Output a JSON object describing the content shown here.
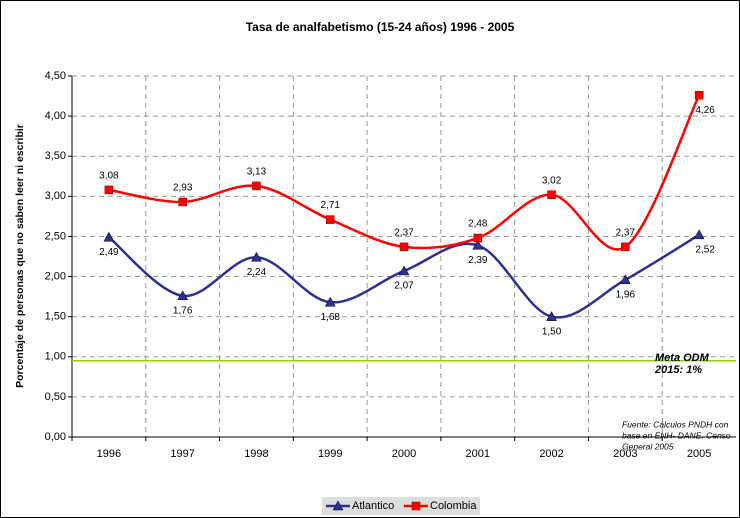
{
  "chart_data": {
    "type": "line",
    "title": "Tasa de analfabetismo (15-24 años) 1996 - 2005",
    "y_label": "Porcentaje de personas que no saben leer ni escribir",
    "categories": [
      "1996",
      "1997",
      "1998",
      "1999",
      "2000",
      "2001",
      "2002",
      "2003",
      "2005"
    ],
    "series": [
      {
        "name": "Atlantico",
        "color": "#2e3192",
        "marker": "triangle",
        "values": [
          2.49,
          1.76,
          2.24,
          1.68,
          2.07,
          2.39,
          1.5,
          1.96,
          2.52
        ],
        "value_labels": [
          "2,49",
          "1,76",
          "2,24",
          "1,68",
          "2,07",
          "2,39",
          "1,50",
          "1,96",
          "2,52"
        ]
      },
      {
        "name": "Colombia",
        "color": "#ff0000",
        "marker": "square",
        "values": [
          3.08,
          2.93,
          3.13,
          2.71,
          2.37,
          2.48,
          3.02,
          2.37,
          4.26
        ],
        "value_labels": [
          "3,08",
          "2,93",
          "3,13",
          "2,71",
          "2,37",
          "2,48",
          "3,02",
          "2,37",
          "4,26"
        ]
      }
    ],
    "ylim": [
      0,
      4.5
    ],
    "yticks": [
      {
        "value": 0,
        "label": "0,00"
      },
      {
        "value": 0.5,
        "label": "0,50"
      },
      {
        "value": 1,
        "label": "1,00"
      },
      {
        "value": 1.5,
        "label": "1,50"
      },
      {
        "value": 2,
        "label": "2,00"
      },
      {
        "value": 2.5,
        "label": "2,50"
      },
      {
        "value": 3,
        "label": "3,00"
      },
      {
        "value": 3.5,
        "label": "3,50"
      },
      {
        "value": 4,
        "label": "4,00"
      },
      {
        "value": 4.5,
        "label": "4,50"
      }
    ],
    "grid": true,
    "smooth": true,
    "legend": "bottom",
    "target": {
      "value": 0.95,
      "color": "#99cc00",
      "label": [
        "Meta ODM",
        "2015: 1%"
      ]
    },
    "source_note": [
      "Fuente: Cálculos PNDH con",
      "base en ENH- DANE. Censo",
      "General 2005"
    ]
  }
}
